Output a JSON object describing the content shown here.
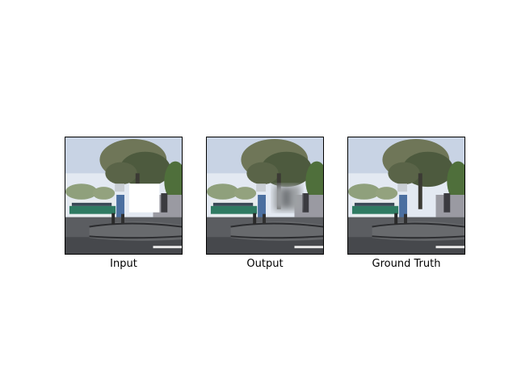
{
  "panels": [
    {
      "caption": "Input",
      "fill": "white"
    },
    {
      "caption": "Output",
      "fill": "blur"
    },
    {
      "caption": "Ground Truth",
      "fill": "none"
    }
  ],
  "colors": {
    "sky": "#dfe6f0",
    "tree": "#5f6a4a",
    "ground": "#5d5f63",
    "bus": "#2f7a62",
    "hole_white": "#ffffff",
    "hole_blur": "#9fa3a6"
  }
}
